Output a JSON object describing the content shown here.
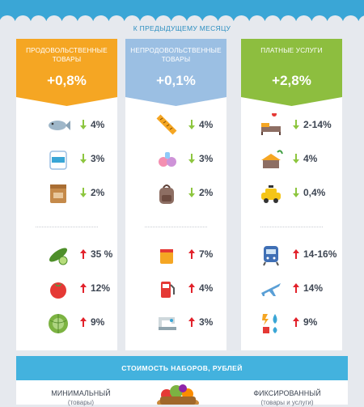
{
  "subtitle": "К ПРЕДЫДУЩЕМУ МЕСЯЦУ",
  "columns": [
    {
      "title": "ПРОДОВОЛЬСТВЕННЫЕ ТОВАРЫ",
      "change": "+0,8%",
      "color": "#f5a623",
      "items": [
        {
          "icon": "fish-icon",
          "direction": "down",
          "value": "4%"
        },
        {
          "icon": "sugar-bag-icon",
          "direction": "down",
          "value": "3%"
        },
        {
          "icon": "flour-bag-icon",
          "direction": "down",
          "value": "2%"
        },
        {
          "icon": "cucumber-icon",
          "direction": "up",
          "value": "35 %"
        },
        {
          "icon": "tomato-icon",
          "direction": "up",
          "value": "12%"
        },
        {
          "icon": "cabbage-icon",
          "direction": "up",
          "value": "9%"
        }
      ]
    },
    {
      "title": "НЕПРОДОВОЛЬСТВЕННЫЕ ТОВАРЫ",
      "change": "+0,1%",
      "color": "#9bbfe3",
      "items": [
        {
          "icon": "measuring-tape-icon",
          "direction": "down",
          "value": "4%"
        },
        {
          "icon": "pacifier-icon",
          "direction": "down",
          "value": "3%"
        },
        {
          "icon": "backpack-icon",
          "direction": "down",
          "value": "2%"
        },
        {
          "icon": "paint-bucket-icon",
          "direction": "up",
          "value": "7%"
        },
        {
          "icon": "fuel-pump-icon",
          "direction": "up",
          "value": "4%"
        },
        {
          "icon": "sewing-machine-icon",
          "direction": "up",
          "value": "3%"
        }
      ]
    },
    {
      "title": "ПЛАТНЫЕ УСЛУГИ",
      "change": "+2,8%",
      "color": "#8dbe3f",
      "items": [
        {
          "icon": "hotel-bed-icon",
          "direction": "down",
          "value": "2-14%"
        },
        {
          "icon": "beach-house-icon",
          "direction": "down",
          "value": "4%"
        },
        {
          "icon": "taxi-icon",
          "direction": "down",
          "value": "0,4%"
        },
        {
          "icon": "train-icon",
          "direction": "up",
          "value": "14-16%"
        },
        {
          "icon": "airplane-icon",
          "direction": "up",
          "value": "14%"
        },
        {
          "icon": "utilities-icon",
          "direction": "up",
          "value": "9%"
        }
      ]
    }
  ],
  "bottom": {
    "title": "СТОИМОСТЬ  НАБОРОВ, РУБЛЕЙ",
    "left_label": "МИНИМАЛЬНЫЙ",
    "left_sub": "(товары)",
    "right_label": "ФИКСИРОВАННЫЙ",
    "right_sub": "(товары и услуги)"
  },
  "colors": {
    "down_arrow": "#8dc63f",
    "up_arrow": "#e2222b",
    "header_blue": "#43b2de",
    "wave_blue": "#3aa6d6"
  }
}
